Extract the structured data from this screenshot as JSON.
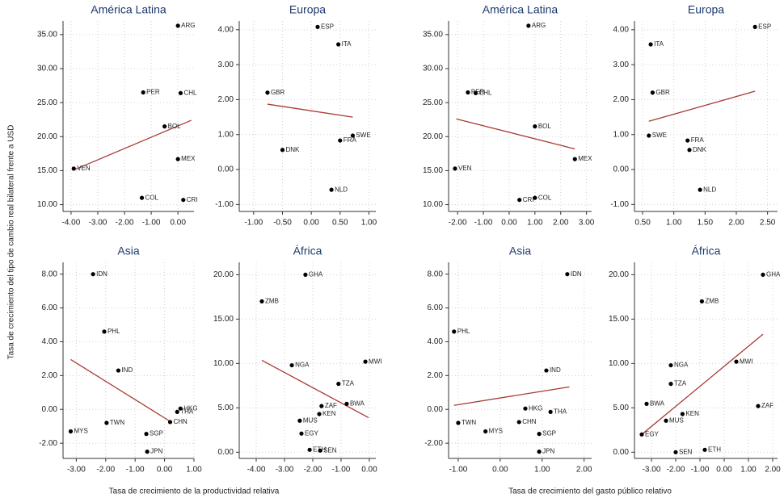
{
  "y_label": "Tasa de crecimiento del tipo de cambio real bilateral frente a USD",
  "x_labels": [
    "Tasa de crecimiento de la productividad relativa",
    "Tasa de crecimiento del gasto público relativo"
  ],
  "chart_data": [
    {
      "type": "scatter",
      "title": "América Latina",
      "color": "#000000",
      "grid": true,
      "labels": [
        "ARG",
        "PER",
        "CHL",
        "BOL",
        "VEN",
        "MEX",
        "COL",
        "CRI"
      ],
      "x": [
        0.0,
        -1.3,
        0.1,
        -0.5,
        -3.9,
        0.0,
        -1.35,
        0.2
      ],
      "y": [
        36.3,
        26.5,
        26.4,
        21.5,
        15.3,
        16.7,
        11.0,
        10.7
      ],
      "fit_line": {
        "x": [
          -3.9,
          0.5
        ],
        "y": [
          15.1,
          22.4
        ],
        "color": "#a83a32"
      },
      "xlim": [
        -4.3,
        0.6
      ],
      "ylim": [
        9,
        37
      ],
      "xticks": [
        {
          "value": -4,
          "label": "-4.00"
        },
        {
          "value": -3,
          "label": "-3.00"
        },
        {
          "value": -2,
          "label": "-2.00"
        },
        {
          "value": -1,
          "label": "-1.00"
        },
        {
          "value": 0,
          "label": "0.00"
        }
      ],
      "yticks": [
        {
          "value": 10,
          "label": "10.00"
        },
        {
          "value": 15,
          "label": "15.00"
        },
        {
          "value": 20,
          "label": "20.00"
        },
        {
          "value": 25,
          "label": "25.00"
        },
        {
          "value": 30,
          "label": "30.00"
        },
        {
          "value": 35,
          "label": "35.00"
        }
      ]
    },
    {
      "type": "scatter",
      "title": "Europa",
      "color": "#000000",
      "grid": true,
      "labels": [
        "ESP",
        "ITA",
        "GBR",
        "SWE",
        "FRA",
        "DNK",
        "NLD"
      ],
      "x": [
        0.11,
        0.47,
        -0.76,
        0.72,
        0.5,
        -0.5,
        0.35
      ],
      "y": [
        4.08,
        3.58,
        2.2,
        0.97,
        0.83,
        0.56,
        -0.58
      ],
      "fit_line": {
        "x": [
          -0.76,
          0.72
        ],
        "y": [
          1.87,
          1.5
        ],
        "color": "#a83a32"
      },
      "xlim": [
        -1.25,
        1.12
      ],
      "ylim": [
        -1.2,
        4.25
      ],
      "xticks": [
        {
          "value": -1,
          "label": "-1.00"
        },
        {
          "value": -0.5,
          "label": "-0.50"
        },
        {
          "value": 0,
          "label": "0.00"
        },
        {
          "value": 0.5,
          "label": "0.50"
        },
        {
          "value": 1,
          "label": "1.00"
        }
      ],
      "yticks": [
        {
          "value": -1,
          "label": "-1.00"
        },
        {
          "value": 0,
          "label": "0.00"
        },
        {
          "value": 1,
          "label": "1.00"
        },
        {
          "value": 2,
          "label": "2.00"
        },
        {
          "value": 3,
          "label": "3.00"
        },
        {
          "value": 4,
          "label": "4.00"
        }
      ]
    },
    {
      "type": "scatter",
      "title": "América Latina",
      "color": "#000000",
      "grid": true,
      "labels": [
        "ARG",
        "PER",
        "CHL",
        "BOL",
        "MEX",
        "VEN",
        "CRI",
        "COL"
      ],
      "x": [
        0.75,
        -1.6,
        -1.3,
        1.0,
        2.55,
        -2.1,
        0.4,
        1.0
      ],
      "y": [
        36.3,
        26.5,
        26.4,
        21.5,
        16.7,
        15.3,
        10.7,
        11.0
      ],
      "fit_line": {
        "x": [
          -2.05,
          2.55
        ],
        "y": [
          22.6,
          18.2
        ],
        "color": "#a83a32"
      },
      "xlim": [
        -2.35,
        3.2
      ],
      "ylim": [
        9,
        37
      ],
      "xticks": [
        {
          "value": -2,
          "label": "-2.00"
        },
        {
          "value": -1,
          "label": "-1.00"
        },
        {
          "value": 0,
          "label": "0.00"
        },
        {
          "value": 1,
          "label": "1.00"
        },
        {
          "value": 2,
          "label": "2.00"
        },
        {
          "value": 3,
          "label": "3.00"
        }
      ],
      "yticks": [
        {
          "value": 10,
          "label": "10.00"
        },
        {
          "value": 15,
          "label": "15.00"
        },
        {
          "value": 20,
          "label": "20.00"
        },
        {
          "value": 25,
          "label": "25.00"
        },
        {
          "value": 30,
          "label": "30.00"
        },
        {
          "value": 35,
          "label": "35.00"
        }
      ]
    },
    {
      "type": "scatter",
      "title": "Europa",
      "color": "#000000",
      "grid": true,
      "labels": [
        "ESP",
        "ITA",
        "GBR",
        "SWE",
        "FRA",
        "DNK",
        "NLD"
      ],
      "x": [
        2.3,
        0.63,
        0.66,
        0.6,
        1.22,
        1.25,
        1.42
      ],
      "y": [
        4.08,
        3.58,
        2.2,
        0.97,
        0.83,
        0.56,
        -0.58
      ],
      "fit_line": {
        "x": [
          0.6,
          2.3
        ],
        "y": [
          1.38,
          2.24
        ],
        "color": "#a83a32"
      },
      "xlim": [
        0.37,
        2.66
      ],
      "ylim": [
        -1.2,
        4.25
      ],
      "xticks": [
        {
          "value": 0.5,
          "label": "0.50"
        },
        {
          "value": 1,
          "label": "1.00"
        },
        {
          "value": 1.5,
          "label": "1.50"
        },
        {
          "value": 2,
          "label": "2.00"
        },
        {
          "value": 2.5,
          "label": "2.50"
        }
      ],
      "yticks": [
        {
          "value": -1,
          "label": "-1.00"
        },
        {
          "value": 0,
          "label": "0.00"
        },
        {
          "value": 1,
          "label": "1.00"
        },
        {
          "value": 2,
          "label": "2.00"
        },
        {
          "value": 3,
          "label": "3.00"
        },
        {
          "value": 4,
          "label": "4.00"
        }
      ]
    },
    {
      "type": "scatter",
      "title": "Asia",
      "color": "#000000",
      "grid": true,
      "labels": [
        "IDN",
        "PHL",
        "IND",
        "HKG",
        "THA",
        "CHN",
        "TWN",
        "SGP",
        "JPN",
        "MYS"
      ],
      "x": [
        -2.43,
        -2.05,
        -1.57,
        0.54,
        0.43,
        0.19,
        -1.97,
        -0.62,
        -0.59,
        -3.19
      ],
      "y": [
        8.0,
        4.6,
        2.3,
        0.05,
        -0.15,
        -0.75,
        -0.8,
        -1.45,
        -2.5,
        -1.3
      ],
      "fit_line": {
        "x": [
          -3.19,
          0.19
        ],
        "y": [
          2.95,
          -0.71
        ],
        "color": "#a83a32"
      },
      "xlim": [
        -3.45,
        1.0
      ],
      "ylim": [
        -2.9,
        8.7
      ],
      "xticks": [
        {
          "value": -3,
          "label": "-3.00"
        },
        {
          "value": -2,
          "label": "-2.00"
        },
        {
          "value": -1,
          "label": "-1.00"
        },
        {
          "value": 0,
          "label": "0.00"
        },
        {
          "value": 1,
          "label": "1.00"
        }
      ],
      "yticks": [
        {
          "value": -2,
          "label": "-2.00"
        },
        {
          "value": 0,
          "label": "0.00"
        },
        {
          "value": 2,
          "label": "2.00"
        },
        {
          "value": 4,
          "label": "4.00"
        },
        {
          "value": 6,
          "label": "6.00"
        },
        {
          "value": 8,
          "label": "8.00"
        }
      ]
    },
    {
      "type": "scatter",
      "title": "África",
      "color": "#000000",
      "grid": true,
      "labels": [
        "GHA",
        "ZMB",
        "NGA",
        "MWI",
        "TZA",
        "ZAF",
        "BWA",
        "KEN",
        "MUS",
        "EGY",
        "ETH",
        "SEN"
      ],
      "x": [
        -2.26,
        -3.8,
        -2.74,
        -0.14,
        -1.09,
        -1.69,
        -0.8,
        -1.77,
        -2.46,
        -2.4,
        -2.11,
        -1.74
      ],
      "y": [
        20.0,
        17.0,
        9.8,
        10.2,
        7.7,
        5.2,
        5.45,
        4.3,
        3.55,
        2.1,
        0.27,
        0.18
      ],
      "fit_line": {
        "x": [
          -3.8,
          -0.03
        ],
        "y": [
          10.36,
          3.9
        ],
        "color": "#a83a32"
      },
      "xlim": [
        -4.6,
        0.23
      ],
      "ylim": [
        -0.7,
        21.4
      ],
      "xticks": [
        {
          "value": -4,
          "label": "-4.00"
        },
        {
          "value": -3,
          "label": "-3.00"
        },
        {
          "value": -2,
          "label": "-2.00"
        },
        {
          "value": -1,
          "label": "-1.00"
        },
        {
          "value": 0,
          "label": "0.00"
        }
      ],
      "yticks": [
        {
          "value": 0,
          "label": "0.00"
        },
        {
          "value": 5,
          "label": "5.00"
        },
        {
          "value": 10,
          "label": "10.00"
        },
        {
          "value": 15,
          "label": "15.00"
        },
        {
          "value": 20,
          "label": "20.00"
        }
      ]
    },
    {
      "type": "scatter",
      "title": "Asia",
      "color": "#000000",
      "grid": true,
      "labels": [
        "IDN",
        "PHL",
        "IND",
        "HKG",
        "THA",
        "CHN",
        "TWN",
        "MYS",
        "SGP",
        "JPN"
      ],
      "x": [
        1.6,
        -1.1,
        1.1,
        0.6,
        1.2,
        0.45,
        -1.0,
        -0.35,
        0.93,
        0.93
      ],
      "y": [
        8.0,
        4.6,
        2.3,
        0.05,
        -0.15,
        -0.75,
        -0.8,
        -1.3,
        -1.45,
        -2.5
      ],
      "fit_line": {
        "x": [
          -1.1,
          1.65
        ],
        "y": [
          0.24,
          1.33
        ],
        "color": "#a83a32"
      },
      "xlim": [
        -1.23,
        2.18
      ],
      "ylim": [
        -2.9,
        8.7
      ],
      "xticks": [
        {
          "value": -1,
          "label": "-1.00"
        },
        {
          "value": 0,
          "label": "0.00"
        },
        {
          "value": 1,
          "label": "1.00"
        },
        {
          "value": 2,
          "label": "2.00"
        }
      ],
      "yticks": [
        {
          "value": -2,
          "label": "-2.00"
        },
        {
          "value": 0,
          "label": "0.00"
        },
        {
          "value": 2,
          "label": "2.00"
        },
        {
          "value": 4,
          "label": "4.00"
        },
        {
          "value": 6,
          "label": "6.00"
        },
        {
          "value": 8,
          "label": "8.00"
        }
      ]
    },
    {
      "type": "scatter",
      "title": "África",
      "color": "#000000",
      "grid": true,
      "labels": [
        "GHA",
        "ZMB",
        "NGA",
        "MWI",
        "ZAF",
        "TZA",
        "BWA",
        "KEN",
        "MUS",
        "EGY",
        "SEN",
        "ETH"
      ],
      "x": [
        1.6,
        -0.92,
        -2.2,
        0.5,
        1.4,
        -2.2,
        -3.2,
        -1.72,
        -2.4,
        -3.4,
        -2.0,
        -0.8
      ],
      "y": [
        20.0,
        17.0,
        9.8,
        10.2,
        5.2,
        7.7,
        5.45,
        4.3,
        3.55,
        2.0,
        0.0,
        0.27
      ],
      "fit_line": {
        "x": [
          -3.4,
          1.6
        ],
        "y": [
          2.0,
          13.3
        ],
        "color": "#a83a32"
      },
      "xlim": [
        -3.7,
        2.2
      ],
      "ylim": [
        -0.7,
        21.4
      ],
      "xticks": [
        {
          "value": -3,
          "label": "-3.00"
        },
        {
          "value": -2,
          "label": "-2.00"
        },
        {
          "value": -1,
          "label": "-1.00"
        },
        {
          "value": 0,
          "label": "0.00"
        },
        {
          "value": 1,
          "label": "1.00"
        },
        {
          "value": 2,
          "label": "2.00"
        }
      ],
      "yticks": [
        {
          "value": 0,
          "label": "0.00"
        },
        {
          "value": 5,
          "label": "5.00"
        },
        {
          "value": 10,
          "label": "10.00"
        },
        {
          "value": 15,
          "label": "15.00"
        },
        {
          "value": 20,
          "label": "20.00"
        }
      ]
    }
  ]
}
